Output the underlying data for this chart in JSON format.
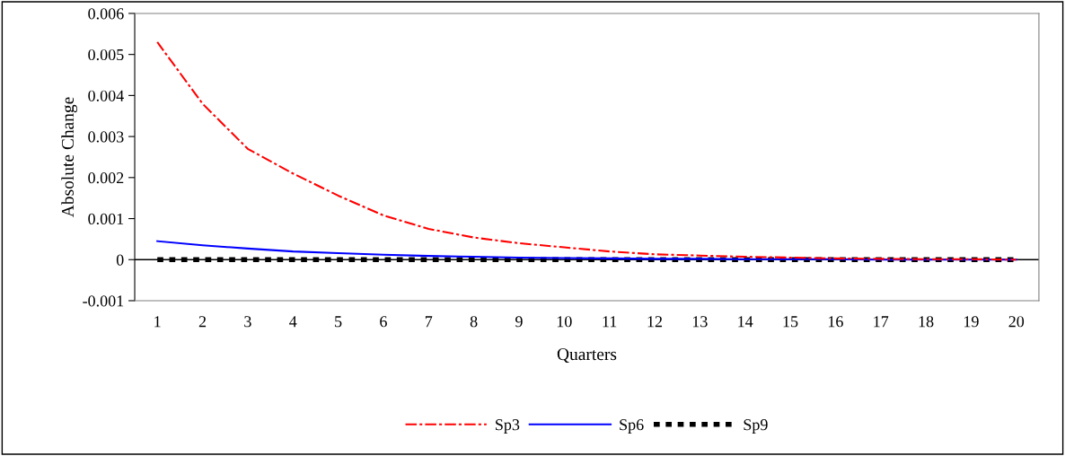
{
  "chart_data": {
    "type": "line",
    "xlabel": "Quarters",
    "ylabel": "Absolute Change",
    "categories": [
      "1",
      "2",
      "3",
      "4",
      "5",
      "6",
      "7",
      "8",
      "9",
      "10",
      "11",
      "12",
      "13",
      "14",
      "15",
      "16",
      "17",
      "18",
      "19",
      "20"
    ],
    "ylim": [
      -0.001,
      0.006
    ],
    "yticks": [
      {
        "value": -0.001,
        "label": "-0.001"
      },
      {
        "value": 0,
        "label": "0"
      },
      {
        "value": 0.001,
        "label": "0.001"
      },
      {
        "value": 0.002,
        "label": "0.002"
      },
      {
        "value": 0.003,
        "label": "0.003"
      },
      {
        "value": 0.004,
        "label": "0.004"
      },
      {
        "value": 0.005,
        "label": "0.005"
      },
      {
        "value": 0.006,
        "label": "0.006"
      }
    ],
    "grid": false,
    "legend": "bottom",
    "marker": "none",
    "ref_lines": [
      {
        "axis": "y",
        "value": 0,
        "color": "#000000"
      }
    ],
    "series": [
      {
        "name": "Sp3",
        "color": "#ff0000",
        "line_style": "dashdot",
        "values": [
          0.0053,
          0.0038,
          0.0027,
          0.0021,
          0.00156,
          0.00108,
          0.00075,
          0.00054,
          0.0004,
          0.0003,
          0.0002,
          0.00013,
          0.0001,
          7e-05,
          5e-05,
          3e-05,
          2e-05,
          1e-05,
          1e-05,
          0
        ]
      },
      {
        "name": "Sp6",
        "color": "#0000ff",
        "line_style": "solid",
        "values": [
          0.00045,
          0.00035,
          0.00027,
          0.0002,
          0.00016,
          0.00012,
          9e-05,
          7e-05,
          5e-05,
          4e-05,
          3e-05,
          2e-05,
          2e-05,
          1e-05,
          1e-05,
          1e-05,
          0,
          0,
          0,
          0
        ]
      },
      {
        "name": "Sp9",
        "color": "#000000",
        "line_style": "dashed",
        "values": [
          0,
          0,
          0,
          0,
          0,
          0,
          0,
          0,
          0,
          0,
          0,
          0,
          0,
          0,
          0,
          0,
          0,
          0,
          0,
          0
        ]
      }
    ]
  }
}
